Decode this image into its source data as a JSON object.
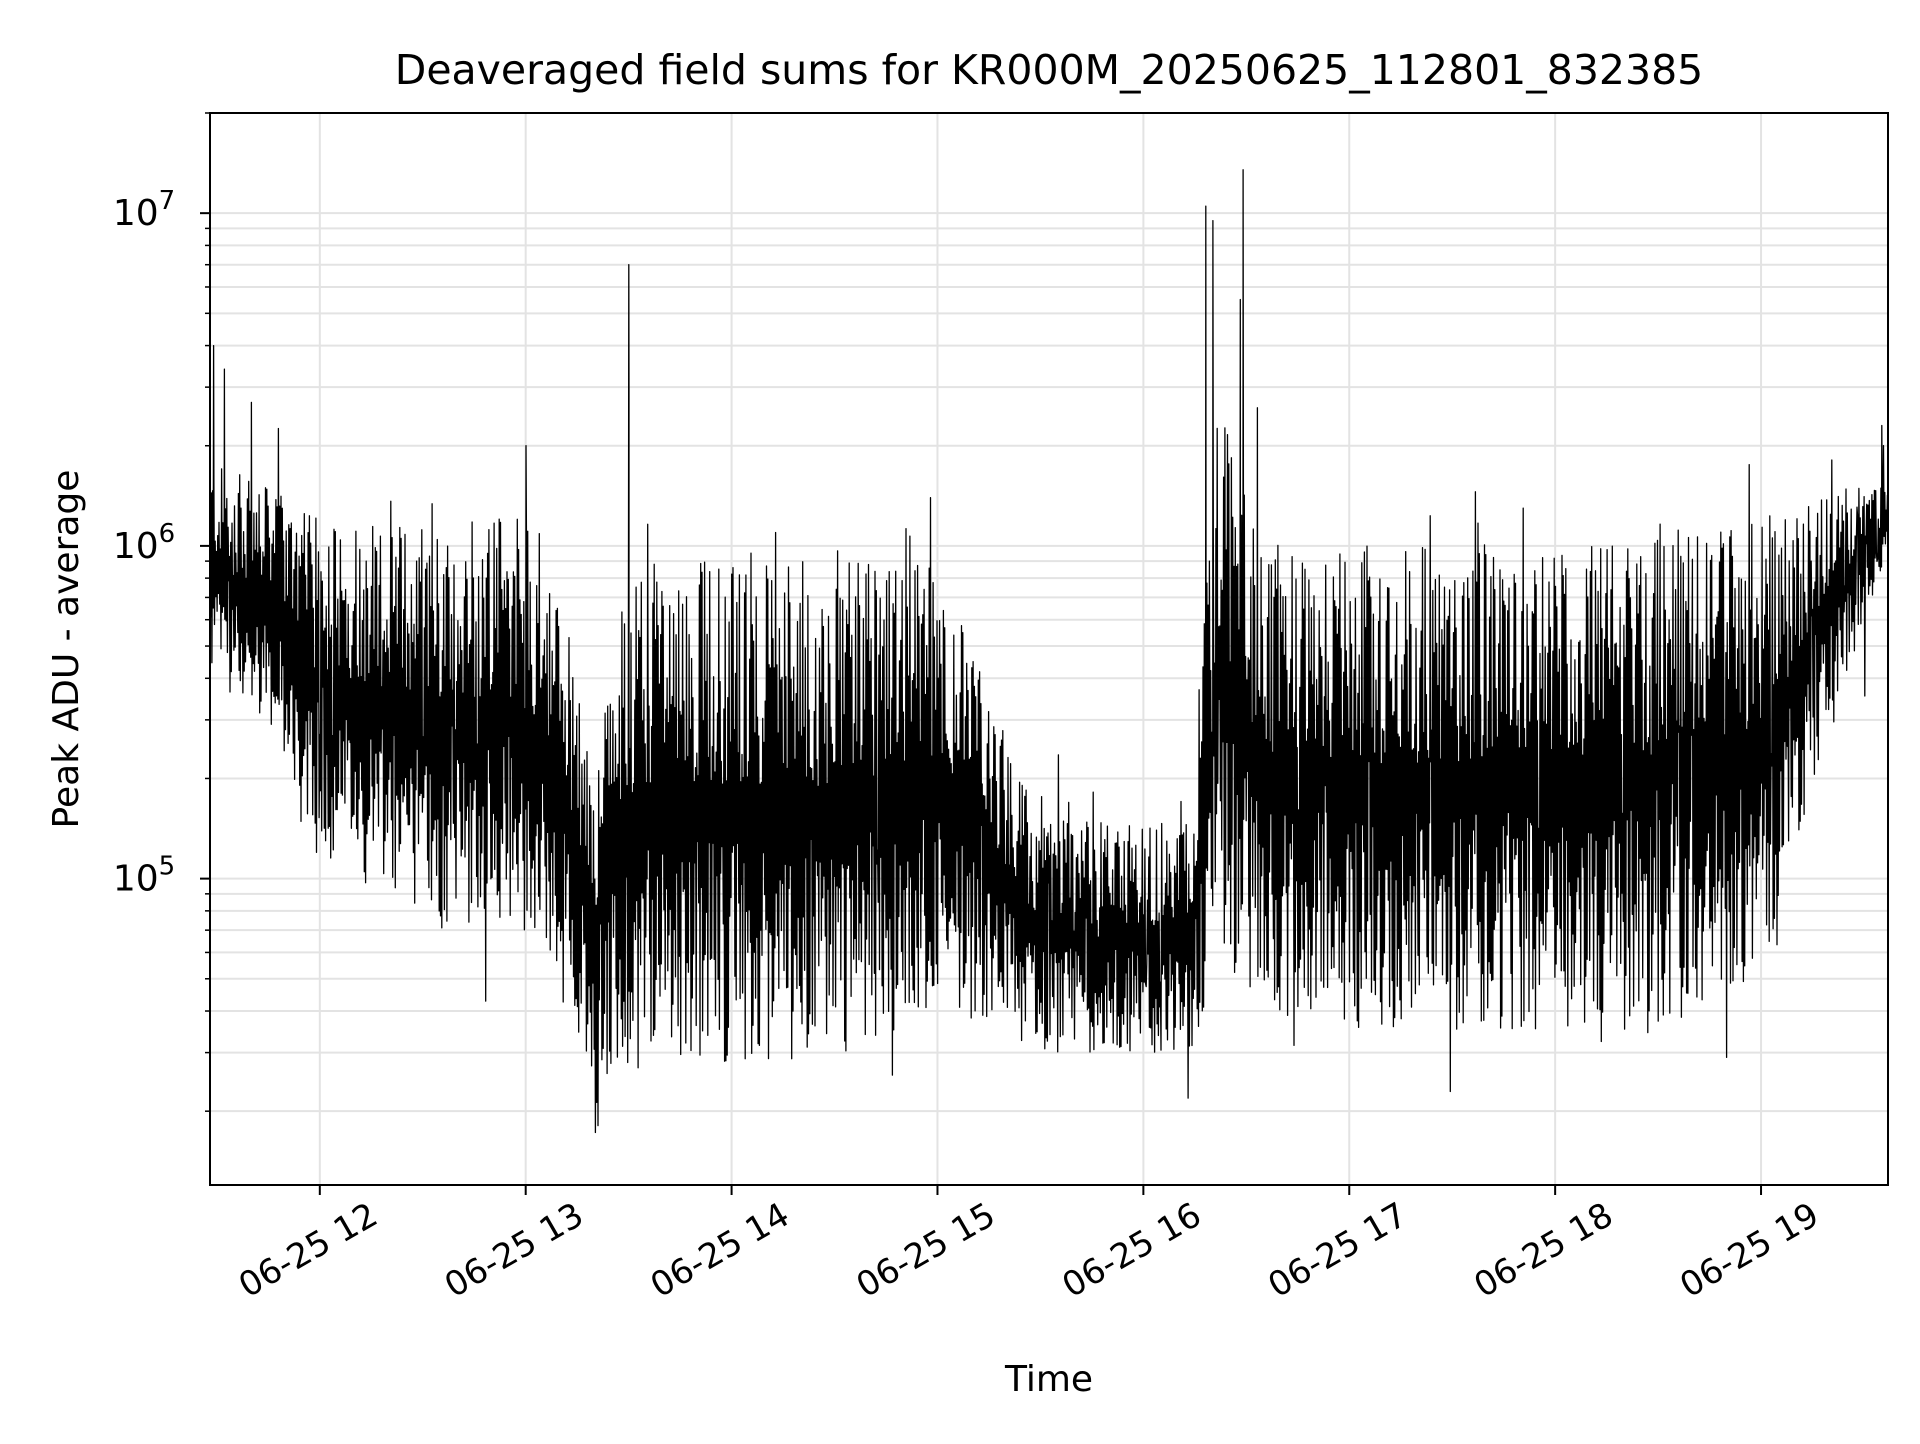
{
  "chart_data": {
    "type": "line",
    "title": "Deaveraged field sums for KR000M_20250625_112801_832385",
    "xlabel": "Time",
    "ylabel": "Peak ADU - average",
    "yscale": "log",
    "grid": true,
    "xlim": [
      "2025-06-25 11:28",
      "2025-06-25 19:37"
    ],
    "ylim": [
      12000,
      20000000
    ],
    "x_tick_labels": [
      "06-25 12",
      "06-25 13",
      "06-25 14",
      "06-25 15",
      "06-25 16",
      "06-25 17",
      "06-25 18",
      "06-25 19"
    ],
    "x_ticks": [
      "2025-06-25 12:00",
      "2025-06-25 13:00",
      "2025-06-25 14:00",
      "2025-06-25 15:00",
      "2025-06-25 16:00",
      "2025-06-25 17:00",
      "2025-06-25 18:00",
      "2025-06-25 19:00"
    ],
    "y_tick_labels": [
      {
        "base": "10",
        "exp": "5",
        "value": 100000
      },
      {
        "base": "10",
        "exp": "6",
        "value": 1000000
      },
      {
        "base": "10",
        "exp": "7",
        "value": 10000000
      }
    ],
    "series": [
      {
        "color": "#000000",
        "envelope_x": [
          "2025-06-25 11:28",
          "2025-06-25 11:45",
          "2025-06-25 12:00",
          "2025-06-25 12:30",
          "2025-06-25 13:00",
          "2025-06-25 13:10",
          "2025-06-25 13:20",
          "2025-06-25 13:30",
          "2025-06-25 13:40",
          "2025-06-25 14:00",
          "2025-06-25 14:30",
          "2025-06-25 15:00",
          "2025-06-25 15:30",
          "2025-06-25 16:00",
          "2025-06-25 16:14",
          "2025-06-25 16:22",
          "2025-06-25 16:35",
          "2025-06-25 17:00",
          "2025-06-25 17:30",
          "2025-06-25 18:00",
          "2025-06-25 18:30",
          "2025-06-25 19:00",
          "2025-06-25 19:20",
          "2025-06-25 19:37"
        ],
        "envelope_low": [
          400000,
          300000,
          120000,
          70000,
          70000,
          50000,
          25000,
          25000,
          30000,
          28000,
          28000,
          40000,
          30000,
          30000,
          28000,
          60000,
          40000,
          35000,
          35000,
          35000,
          35000,
          50000,
          300000,
          900000
        ],
        "envelope_high": [
          1800000,
          1500000,
          1200000,
          1200000,
          1300000,
          700000,
          200000,
          900000,
          900000,
          900000,
          900000,
          900000,
          150000,
          150000,
          150000,
          3000000,
          900000,
          1000000,
          1000000,
          1000000,
          1100000,
          1200000,
          1500000,
          1500000
        ],
        "peaks": [
          {
            "x": "2025-06-25 11:29",
            "y": 4000000
          },
          {
            "x": "2025-06-25 11:32",
            "y": 3400000
          },
          {
            "x": "2025-06-25 11:40",
            "y": 2700000
          },
          {
            "x": "2025-06-25 13:00",
            "y": 2000000
          },
          {
            "x": "2025-06-25 13:30",
            "y": 7000000
          },
          {
            "x": "2025-06-25 13:30",
            "y": 3000000
          },
          {
            "x": "2025-06-25 16:18",
            "y": 10500000
          },
          {
            "x": "2025-06-25 16:20",
            "y": 9500000
          },
          {
            "x": "2025-06-25 16:28",
            "y": 5500000
          },
          {
            "x": "2025-06-25 16:29",
            "y": 13500000
          },
          {
            "x": "2025-06-25 16:33",
            "y": 2600000
          },
          {
            "x": "2025-06-25 19:35",
            "y": 2300000
          }
        ]
      }
    ]
  }
}
